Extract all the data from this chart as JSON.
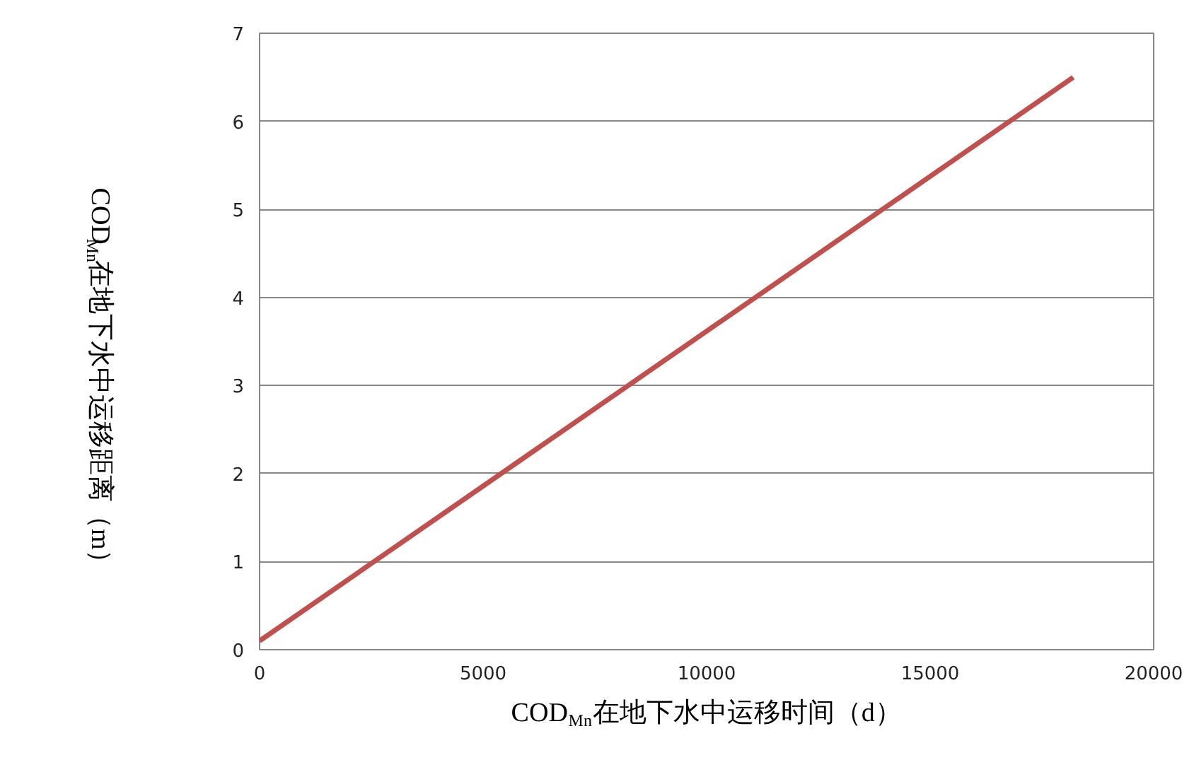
{
  "chart_data": {
    "type": "line",
    "xlabel": "COD$_{Mn}$在地下水中运移时间（d）",
    "ylabel": "COD$_{Mn}$在地下水中运移距离（m）",
    "x": [
      0,
      18200
    ],
    "series": [
      {
        "color": "#c0504d",
        "values": [
          0.1,
          6.5
        ]
      }
    ],
    "xlim": [
      0,
      20000
    ],
    "xticks": [
      0,
      5000,
      10000,
      15000,
      20000
    ],
    "ylim": [
      0,
      7
    ],
    "yticks": [
      0,
      1,
      2,
      3,
      4,
      5,
      6,
      7
    ],
    "grid": "y",
    "marker": "none",
    "line_style": "solid"
  }
}
